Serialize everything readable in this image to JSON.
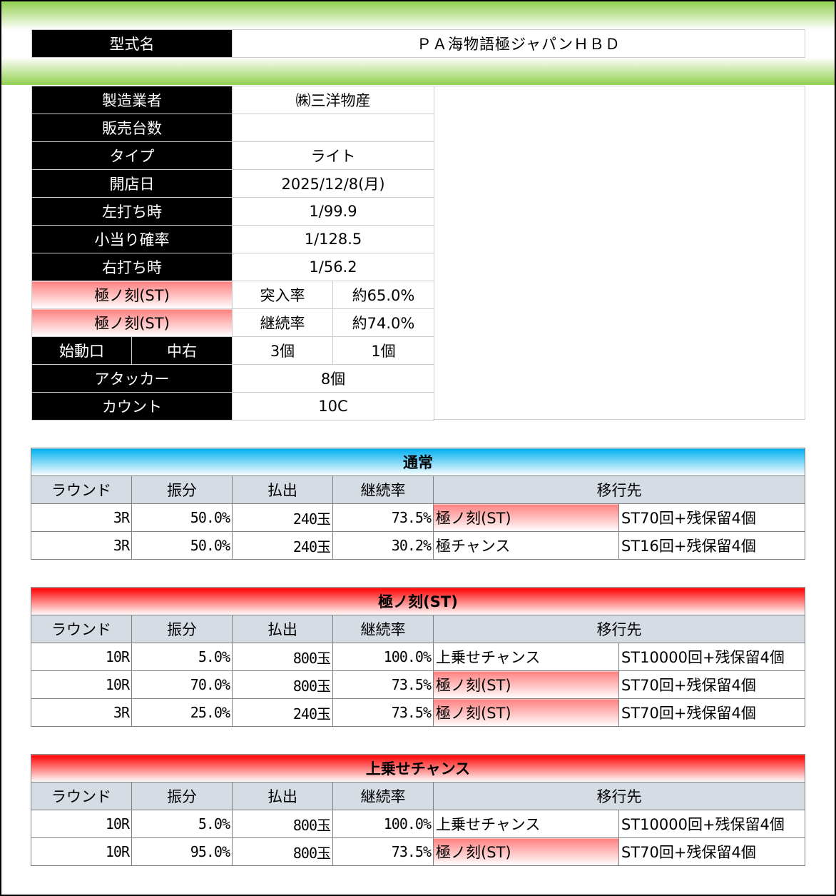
{
  "model": {
    "label": "型式名",
    "value": "ＰＡ海物語極ジャパンＨＢＤ"
  },
  "info": [
    {
      "label": "製造業者",
      "value": "㈱三洋物産"
    },
    {
      "label": "販売台数",
      "value": ""
    },
    {
      "label": "タイプ",
      "value": "ライト"
    },
    {
      "label": "開店日",
      "value": "2025/12/8(月)"
    },
    {
      "label": "左打ち時",
      "value": "1/99.9"
    },
    {
      "label": "小当り確率",
      "value": "1/128.5"
    },
    {
      "label": "右打ち時",
      "value": "1/56.2"
    }
  ],
  "st_rows": [
    {
      "label": "極ノ刻(ST)",
      "key": "突入率",
      "value": "約65.0%"
    },
    {
      "label": "極ノ刻(ST)",
      "key": "継続率",
      "value": "約74.0%"
    }
  ],
  "start": {
    "label": "始動口",
    "sub": "中右",
    "v1": "3個",
    "v2": "1個"
  },
  "attacker": {
    "label": "アタッカー",
    "value": "8個"
  },
  "count": {
    "label": "カウント",
    "value": "10C"
  },
  "headers": [
    "ラウンド",
    "振分",
    "払出",
    "継続率",
    "移行先"
  ],
  "sections": [
    {
      "title": "通常",
      "rows": [
        [
          "3R",
          "50.0%",
          "240玉",
          "73.5%",
          "極ノ刻(ST)",
          "ST70回+残保留4個"
        ],
        [
          "3R",
          "50.0%",
          "240玉",
          "30.2%",
          "極チャンス",
          "ST16回+残保留4個"
        ]
      ]
    },
    {
      "title": "極ノ刻(ST)",
      "rows": [
        [
          "10R",
          "5.0%",
          "800玉",
          "100.0%",
          "上乗せチャンス",
          "ST10000回+残保留4個"
        ],
        [
          "10R",
          "70.0%",
          "800玉",
          "73.5%",
          "極ノ刻(ST)",
          "ST70回+残保留4個"
        ],
        [
          "3R",
          "25.0%",
          "240玉",
          "73.5%",
          "極ノ刻(ST)",
          "ST70回+残保留4個"
        ]
      ]
    },
    {
      "title": "上乗せチャンス",
      "rows": [
        [
          "10R",
          "5.0%",
          "800玉",
          "100.0%",
          "上乗せチャンス",
          "ST10000回+残保留4個"
        ],
        [
          "10R",
          "95.0%",
          "800玉",
          "73.5%",
          "極ノ刻(ST)",
          "ST70回+残保留4個"
        ]
      ]
    }
  ],
  "colors": {
    "green": "#92d050",
    "blue": "#00b0f0",
    "red": "#ff0000",
    "pink": "#ff8080"
  }
}
